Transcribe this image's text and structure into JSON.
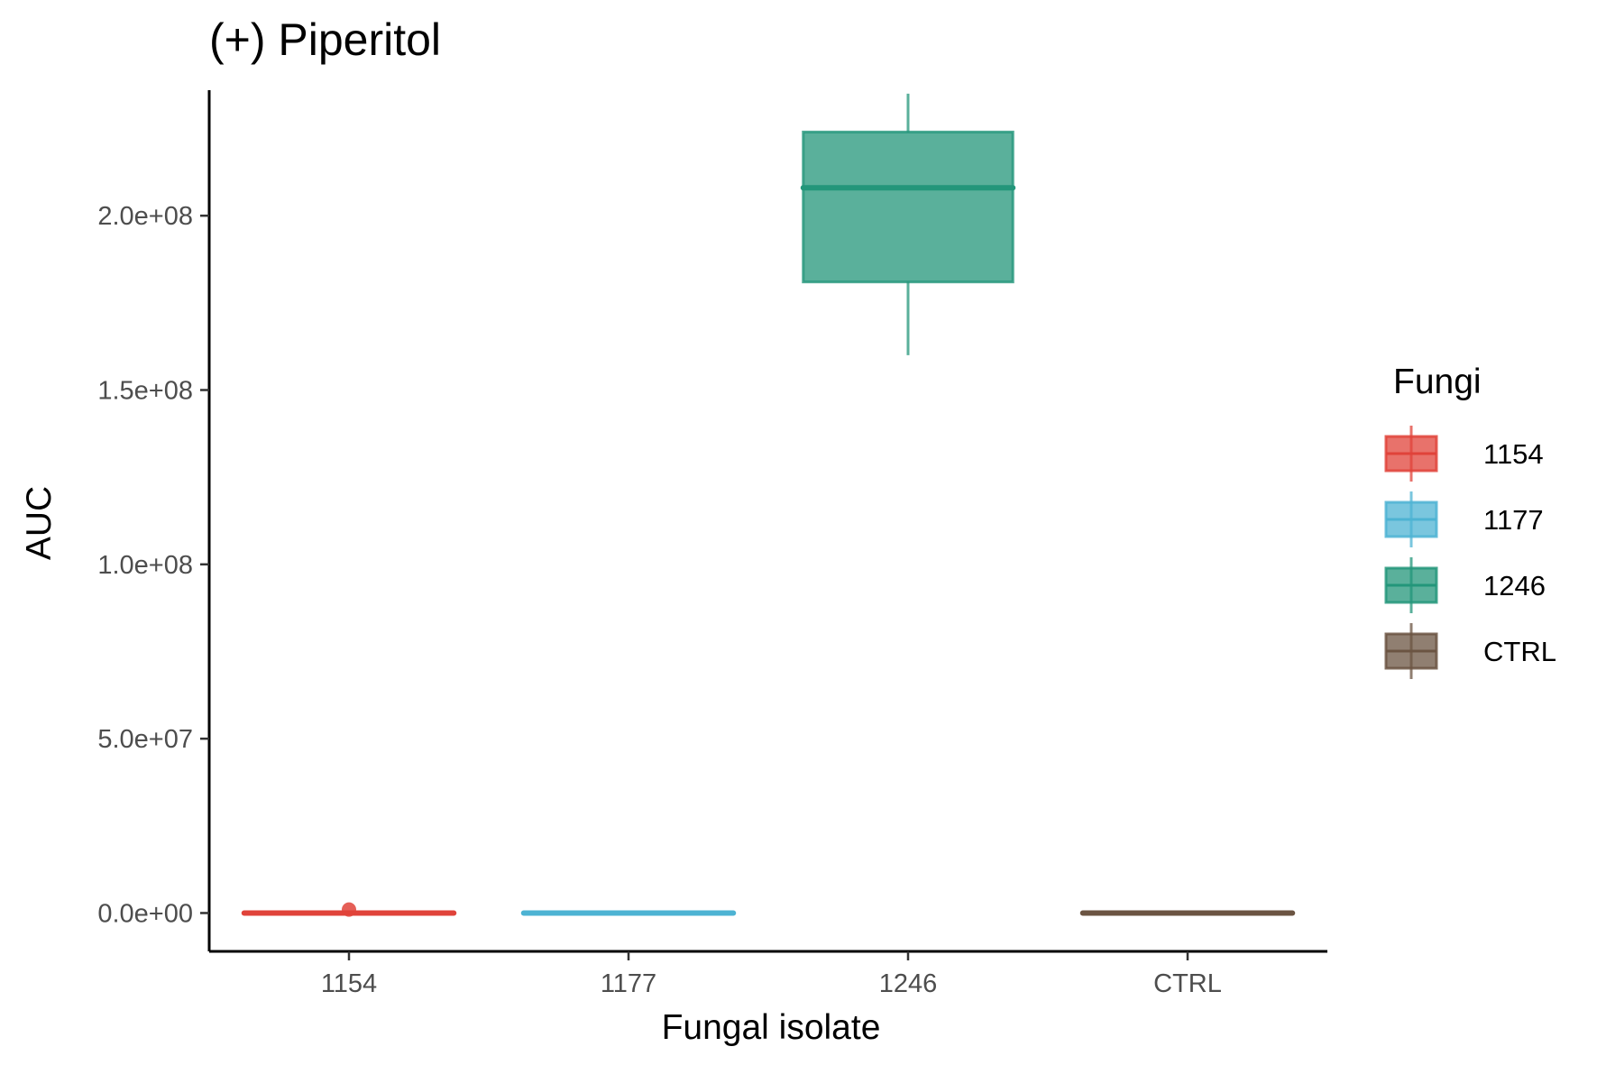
{
  "chart_data": {
    "type": "boxplot",
    "title": "(+) Piperitol",
    "xlabel": "Fungal isolate",
    "ylabel": "AUC",
    "categories": [
      "1154",
      "1177",
      "1246",
      "CTRL"
    ],
    "ylim": [
      -11000000,
      236000000
    ],
    "yticks": [
      {
        "value": 0,
        "label": "0.0e+00"
      },
      {
        "value": 50000000,
        "label": "5.0e+07"
      },
      {
        "value": 100000000,
        "label": "1.0e+08"
      },
      {
        "value": 150000000,
        "label": "1.5e+08"
      },
      {
        "value": 200000000,
        "label": "2.0e+08"
      }
    ],
    "boxes": [
      {
        "category": "1154",
        "color": "#e0433a",
        "min": 0,
        "q1": 0,
        "median": 0,
        "q3": 0,
        "max": 0,
        "outliers": [
          1000000
        ]
      },
      {
        "category": "1177",
        "color": "#4db3d3",
        "min": 0,
        "q1": 0,
        "median": 0,
        "q3": 0,
        "max": 0,
        "outliers": []
      },
      {
        "category": "1246",
        "color": "#23967a",
        "min": 160000000,
        "q1": 181000000,
        "median": 208000000,
        "q3": 224000000,
        "max": 235000000,
        "outliers": []
      },
      {
        "category": "CTRL",
        "color": "#6b5442",
        "min": 0,
        "q1": 0,
        "median": 0,
        "q3": 0,
        "max": 0,
        "outliers": []
      }
    ],
    "legend": {
      "title": "Fungi",
      "position": "right",
      "items": [
        {
          "label": "1154",
          "color": "#e0433a"
        },
        {
          "label": "1177",
          "color": "#4db3d3"
        },
        {
          "label": "1246",
          "color": "#23967a"
        },
        {
          "label": "CTRL",
          "color": "#6b5442"
        }
      ]
    },
    "grid": false
  }
}
